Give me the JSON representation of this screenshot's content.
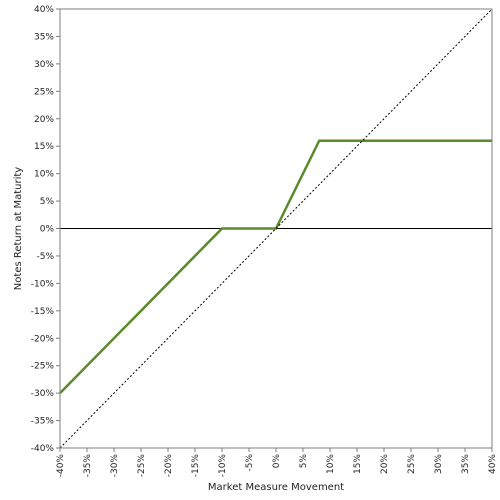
{
  "chart_data": {
    "type": "line",
    "xlabel": "Market Measure Movement",
    "ylabel": "Notes Return at Maturity",
    "xlim": [
      -40,
      40
    ],
    "ylim": [
      -40,
      40
    ],
    "x_ticks": [
      -40,
      -35,
      -30,
      -25,
      -20,
      -15,
      -10,
      -5,
      0,
      5,
      10,
      15,
      20,
      25,
      30,
      35,
      40
    ],
    "y_ticks": [
      -40,
      -35,
      -30,
      -25,
      -20,
      -15,
      -10,
      -5,
      0,
      5,
      10,
      15,
      20,
      25,
      30,
      35,
      40
    ],
    "x_tick_labels": [
      "-40%",
      "-35%",
      "-30%",
      "-25%",
      "-20%",
      "-15%",
      "-10%",
      "-5%",
      "0%",
      "5%",
      "10%",
      "15%",
      "20%",
      "25%",
      "30%",
      "35%",
      "40%"
    ],
    "y_tick_labels": [
      "-40%",
      "-35%",
      "-30%",
      "-25%",
      "-20%",
      "-15%",
      "-10%",
      "-5%",
      "0%",
      "5%",
      "10%",
      "15%",
      "20%",
      "25%",
      "30%",
      "35%",
      "40%"
    ],
    "grid": false,
    "legend": "none",
    "series": [
      {
        "color": "#5a8a2a",
        "style": "solid",
        "points": [
          [
            -40,
            -30
          ],
          [
            -10,
            0
          ],
          [
            0,
            0
          ],
          [
            8,
            16
          ],
          [
            40,
            16
          ]
        ]
      },
      {
        "color": "#000000",
        "style": "dotted",
        "points": [
          [
            -40,
            -40
          ],
          [
            40,
            40
          ]
        ]
      }
    ],
    "reference_lines": [
      {
        "axis": "y",
        "value": 0,
        "color": "#000000"
      }
    ]
  }
}
